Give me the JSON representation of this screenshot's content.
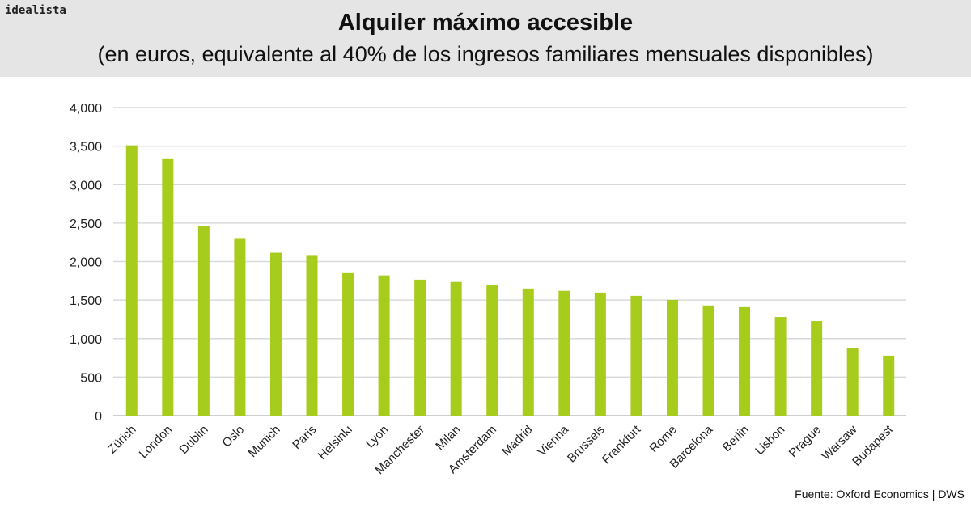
{
  "header": {
    "logo": "idealista",
    "title": "Alquiler máximo accesible",
    "subtitle": "(en euros, equivalente al 40% de los ingresos familiares mensuales disponibles)"
  },
  "source": "Fuente: Oxford Economics | DWS",
  "colors": {
    "bar": "#a8cc1c",
    "grid": "#d9d9d9",
    "header_bg": "#e5e5e5"
  },
  "chart_data": {
    "type": "bar",
    "title": "Alquiler máximo accesible",
    "subtitle": "(en euros, equivalente al 40% de los ingresos familiares mensuales disponibles)",
    "xlabel": "",
    "ylabel": "",
    "ylim": [
      0,
      4000
    ],
    "yticks": [
      0,
      500,
      1000,
      1500,
      2000,
      2500,
      3000,
      3500,
      4000
    ],
    "ytick_labels": [
      "0",
      "500",
      "1,000",
      "1,500",
      "2,000",
      "2,500",
      "3,000",
      "3,500",
      "4,000"
    ],
    "grid": true,
    "categories": [
      "Zürich",
      "London",
      "Dublin",
      "Oslo",
      "Munich",
      "Paris",
      "Helsinki",
      "Lyon",
      "Manchester",
      "Milan",
      "Amsterdam",
      "Madrid",
      "Vienna",
      "Brussels",
      "Frankfurt",
      "Rome",
      "Barcelona",
      "Berlin",
      "Lisbon",
      "Prague",
      "Warsaw",
      "Budapest"
    ],
    "values": [
      3510,
      3330,
      2460,
      2305,
      2115,
      2085,
      1860,
      1820,
      1765,
      1735,
      1690,
      1650,
      1620,
      1597,
      1555,
      1502,
      1430,
      1408,
      1280,
      1228,
      882,
      778
    ]
  }
}
